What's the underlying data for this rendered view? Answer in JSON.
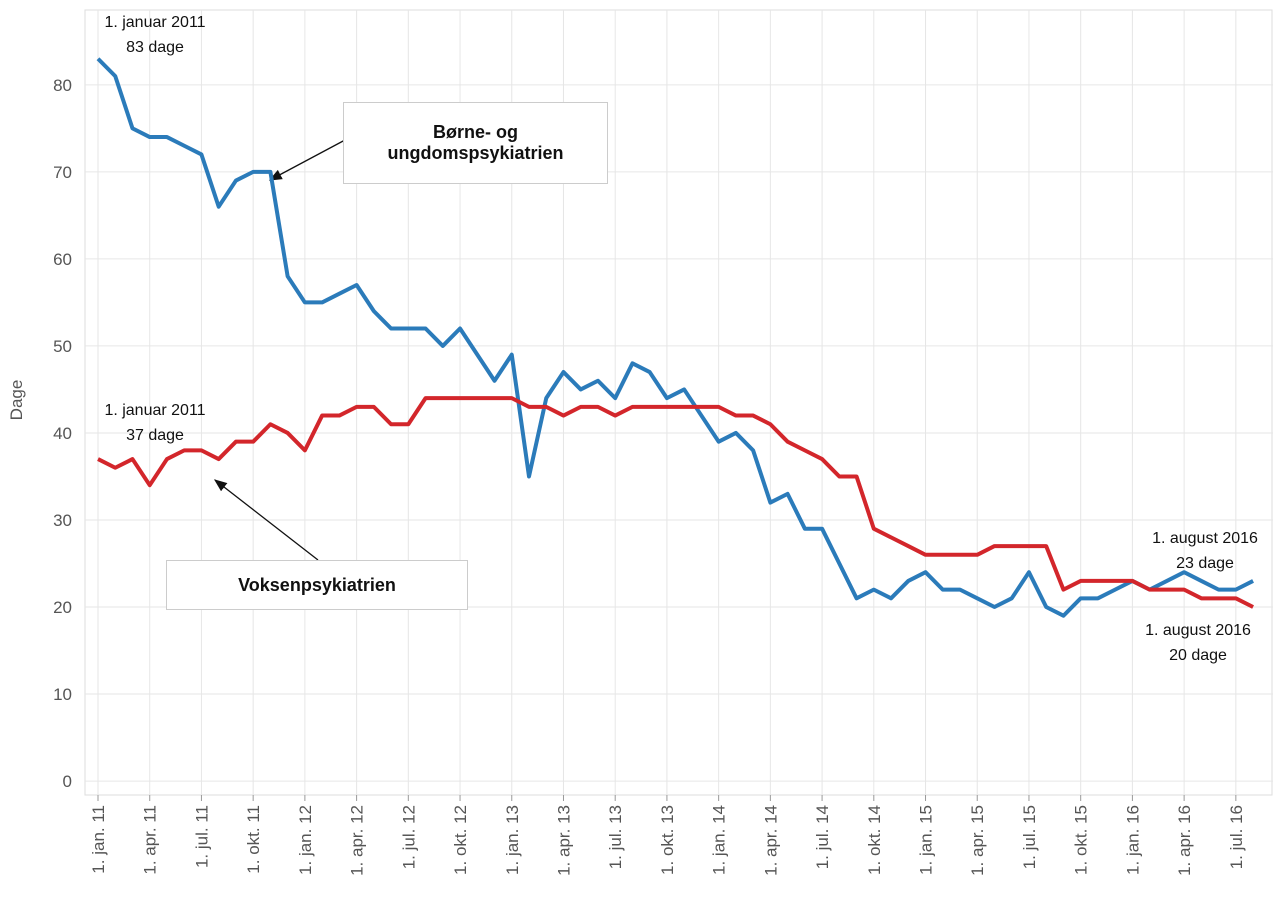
{
  "chart_data": {
    "type": "line",
    "y_label": "Dage",
    "categories": [
      "1. jan. 11",
      null,
      null,
      "1. apr. 11",
      null,
      null,
      "1. jul. 11",
      null,
      null,
      "1. okt. 11",
      null,
      null,
      "1. jan. 12",
      null,
      null,
      "1. apr. 12",
      null,
      null,
      "1. jul. 12",
      null,
      null,
      "1. okt. 12",
      null,
      null,
      "1. jan. 13",
      null,
      null,
      "1. apr. 13",
      null,
      null,
      "1. jul. 13",
      null,
      null,
      "1. okt. 13",
      null,
      null,
      "1. jan. 14",
      null,
      null,
      "1. apr. 14",
      null,
      null,
      "1. jul. 14",
      null,
      null,
      "1. okt. 14",
      null,
      null,
      "1. jan. 15",
      null,
      null,
      "1. apr. 15",
      null,
      null,
      "1. jul. 15",
      null,
      null,
      "1. okt. 15",
      null,
      null,
      "1. jan. 16",
      null,
      null,
      "1. apr. 16",
      null,
      null,
      "1. jul. 16",
      null
    ],
    "series": [
      {
        "name": "Børne- og ungdomspsykiatrien",
        "color": "#2b7bba",
        "values": [
          83,
          81,
          75,
          74,
          74,
          73,
          72,
          66,
          69,
          70,
          70,
          58,
          55,
          55,
          56,
          57,
          54,
          52,
          52,
          52,
          50,
          52,
          49,
          46,
          49,
          35,
          44,
          47,
          45,
          46,
          44,
          48,
          47,
          44,
          45,
          42,
          39,
          40,
          38,
          32,
          33,
          29,
          29,
          25,
          21,
          22,
          21,
          23,
          24,
          22,
          22,
          21,
          20,
          21,
          24,
          20,
          19,
          21,
          21,
          22,
          23,
          22,
          23,
          24,
          23,
          22,
          22,
          23
        ]
      },
      {
        "name": "Voksenpsykiatrien",
        "color": "#d3262b",
        "values": [
          37,
          36,
          37,
          34,
          37,
          38,
          38,
          37,
          39,
          39,
          41,
          40,
          38,
          42,
          42,
          43,
          43,
          41,
          41,
          44,
          44,
          44,
          44,
          44,
          44,
          43,
          43,
          42,
          43,
          43,
          42,
          43,
          43,
          43,
          43,
          43,
          43,
          42,
          42,
          41,
          39,
          38,
          37,
          35,
          35,
          29,
          28,
          27,
          26,
          26,
          26,
          26,
          27,
          27,
          27,
          27,
          22,
          23,
          23,
          23,
          23,
          22,
          22,
          22,
          21,
          21,
          21,
          20
        ]
      }
    ],
    "annotations": [
      {
        "lines": [
          "1. januar 2011",
          "83 dage"
        ]
      },
      {
        "lines": [
          "1. januar 2011",
          "37 dage"
        ]
      },
      {
        "lines": [
          "1. august 2016",
          "23 dage"
        ]
      },
      {
        "lines": [
          "1. august 2016",
          "20 dage"
        ]
      }
    ],
    "ylim": [
      -1.6,
      88.6
    ],
    "yticks": [
      0,
      10,
      20,
      30,
      40,
      50,
      60,
      70,
      80
    ],
    "grid": true
  }
}
